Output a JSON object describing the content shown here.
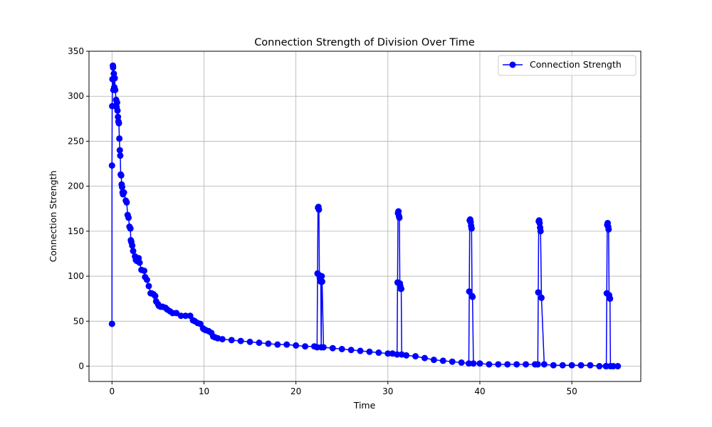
{
  "chart_data": {
    "type": "line",
    "title": "Connection Strength of Division Over Time",
    "xlabel": "Time",
    "ylabel": "Connection Strength",
    "xlim": [
      -2.5,
      57.5
    ],
    "ylim": [
      -17,
      350
    ],
    "xticks": [
      0,
      10,
      20,
      30,
      40,
      50
    ],
    "yticks": [
      0,
      50,
      100,
      150,
      200,
      250,
      300,
      350
    ],
    "grid": true,
    "legend": {
      "position": "upper right",
      "entries": [
        "Connection Strength"
      ]
    },
    "colors": {
      "series": "#0000ff",
      "grid": "#b0b0b0",
      "axes": "#000000"
    },
    "series": [
      {
        "name": "Connection Strength",
        "marker": "circle",
        "x": [
          0.0,
          0.0,
          0.02,
          0.05,
          0.1,
          0.12,
          0.15,
          0.2,
          0.25,
          0.3,
          0.35,
          0.45,
          0.5,
          0.55,
          0.6,
          0.65,
          0.7,
          0.75,
          0.8,
          0.85,
          0.9,
          0.95,
          1.0,
          1.05,
          1.1,
          1.15,
          1.2,
          1.3,
          1.5,
          1.6,
          1.7,
          1.8,
          1.9,
          2.0,
          2.05,
          2.1,
          2.2,
          2.3,
          2.5,
          2.6,
          2.7,
          2.9,
          3.0,
          3.2,
          3.5,
          3.6,
          3.8,
          4.0,
          4.2,
          4.3,
          4.5,
          4.7,
          4.8,
          5.0,
          5.1,
          5.3,
          5.5,
          5.8,
          6.0,
          6.3,
          6.6,
          7.0,
          7.5,
          8.0,
          8.5,
          8.8,
          9.0,
          9.3,
          9.6,
          9.9,
          10.0,
          10.2,
          10.5,
          10.8,
          11.0,
          11.2,
          11.5,
          12.0,
          13.0,
          14.0,
          15.0,
          16.0,
          17.0,
          18.0,
          19.0,
          20.0,
          21.0,
          22.0,
          22.3,
          22.35,
          22.4,
          22.45,
          22.5,
          22.55,
          22.6,
          22.65,
          22.7,
          22.75,
          22.8,
          22.85,
          23.0,
          24.0,
          25.0,
          26.0,
          27.0,
          28.0,
          29.0,
          30.0,
          30.5,
          31.0,
          31.05,
          31.1,
          31.15,
          31.2,
          31.25,
          31.3,
          31.35,
          31.4,
          31.45,
          31.5,
          32.0,
          33.0,
          34.0,
          35.0,
          36.0,
          37.0,
          38.0,
          38.8,
          38.85,
          38.9,
          38.95,
          39.0,
          39.05,
          39.1,
          39.15,
          39.2,
          39.3,
          40.0,
          41.0,
          42.0,
          43.0,
          44.0,
          45.0,
          46.0,
          46.3,
          46.35,
          46.4,
          46.45,
          46.5,
          46.55,
          46.6,
          46.7,
          47.0,
          48.0,
          49.0,
          50.0,
          51.0,
          52.0,
          53.0,
          53.7,
          53.75,
          53.8,
          53.85,
          53.9,
          53.95,
          54.0,
          54.05,
          54.1,
          54.15,
          54.2,
          54.5,
          55.0
        ],
        "y": [
          47,
          223,
          289,
          319,
          334,
          332,
          307,
          325,
          310,
          320,
          307,
          296,
          288,
          293,
          284,
          277,
          272,
          270,
          253,
          240,
          234,
          213,
          212,
          202,
          199,
          193,
          191,
          193,
          184,
          182,
          168,
          165,
          155,
          153,
          140,
          138,
          134,
          128,
          122,
          118,
          117,
          120,
          115,
          107,
          106,
          99,
          96,
          89,
          81,
          81,
          80,
          78,
          72,
          69,
          67,
          66,
          66,
          65,
          63,
          61,
          59,
          59,
          56,
          56,
          56,
          51,
          50,
          48,
          47,
          42,
          41,
          40,
          39,
          37,
          33,
          32,
          31,
          30,
          29,
          28,
          27,
          26,
          25,
          24,
          24,
          23,
          22,
          22,
          21,
          103,
          176,
          177,
          174,
          101,
          98,
          95,
          94,
          21,
          100,
          94,
          21,
          20,
          19,
          18,
          17,
          16,
          15,
          14,
          14,
          13,
          93,
          170,
          172,
          167,
          165,
          92,
          89,
          86,
          86,
          13,
          12,
          11,
          9,
          7,
          6,
          5,
          4,
          3,
          83,
          162,
          163,
          160,
          156,
          153,
          78,
          77,
          3,
          3,
          2,
          2,
          2,
          2,
          2,
          2,
          2,
          82,
          161,
          162,
          159,
          154,
          150,
          76,
          2,
          1,
          1,
          1,
          1,
          1,
          0,
          0,
          0,
          81,
          157,
          159,
          155,
          152,
          79,
          76,
          75,
          0,
          0,
          0
        ]
      }
    ]
  }
}
